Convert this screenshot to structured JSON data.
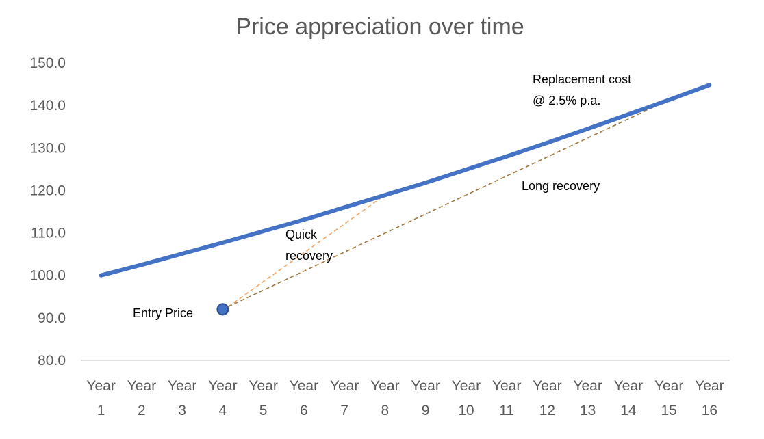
{
  "chart_data": {
    "type": "line",
    "title": "Price appreciation over time",
    "xlabel": "",
    "ylabel": "",
    "ylim": [
      80,
      150
    ],
    "yticks": [
      "80.0",
      "90.0",
      "100.0",
      "110.0",
      "120.0",
      "130.0",
      "140.0",
      "150.0"
    ],
    "categories": [
      [
        "Year",
        "1"
      ],
      [
        "Year",
        "2"
      ],
      [
        "Year",
        "3"
      ],
      [
        "Year",
        "4"
      ],
      [
        "Year",
        "5"
      ],
      [
        "Year",
        "6"
      ],
      [
        "Year",
        "7"
      ],
      [
        "Year",
        "8"
      ],
      [
        "Year",
        "9"
      ],
      [
        "Year",
        "10"
      ],
      [
        "Year",
        "11"
      ],
      [
        "Year",
        "12"
      ],
      [
        "Year",
        "13"
      ],
      [
        "Year",
        "14"
      ],
      [
        "Year",
        "15"
      ],
      [
        "Year",
        "16"
      ]
    ],
    "series": [
      {
        "name": "Replacement cost @ 2.5% p.a.",
        "color": "#4472c4",
        "values": [
          100.0,
          102.5,
          105.1,
          107.7,
          110.4,
          113.1,
          116.0,
          118.9,
          121.8,
          124.9,
          128.0,
          131.2,
          134.5,
          137.9,
          141.3,
          144.8
        ]
      }
    ],
    "entry_point": {
      "label": "Entry Price",
      "x_index": 3,
      "y": 92.0,
      "color": "#4472c4"
    },
    "recovery_lines": [
      {
        "label": "Quick recovery",
        "from_x_index": 3,
        "from_y": 92.0,
        "to_x_index": 7,
        "to_y": 118.9,
        "color": "#f4a460"
      },
      {
        "label": "Long recovery",
        "from_x_index": 3,
        "from_y": 92.0,
        "to_x_index": 14,
        "to_y": 141.3,
        "color": "#a0783c"
      }
    ],
    "annotations": {
      "series_label_line1": "Replacement cost",
      "series_label_line2": "@ 2.5% p.a.",
      "entry_label": "Entry Price",
      "quick_line1": "Quick",
      "quick_line2": "recovery",
      "long_label": "Long recovery"
    },
    "grid": false
  }
}
